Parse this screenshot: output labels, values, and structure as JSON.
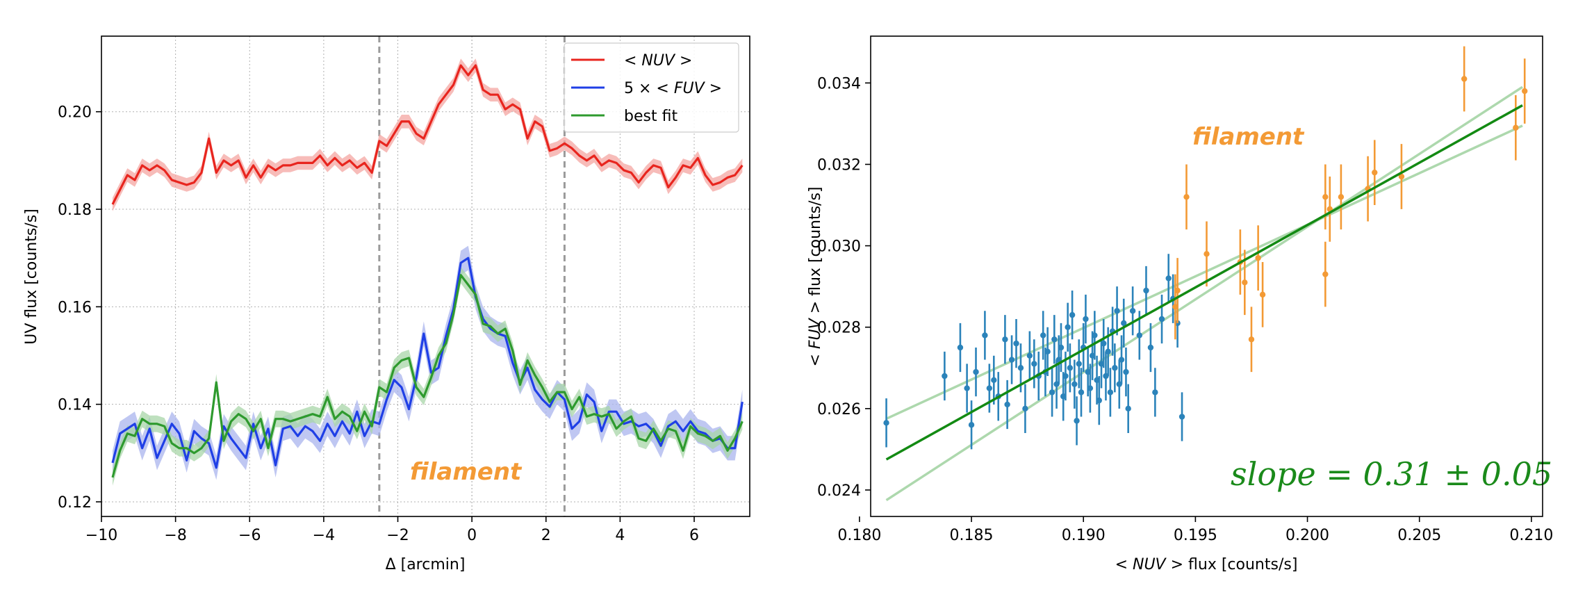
{
  "chart_data": [
    {
      "type": "line",
      "title": "",
      "xlabel": "Δ [arcmin]",
      "ylabel": "UV flux [counts/s]",
      "xlim": [
        -10,
        7.5
      ],
      "ylim": [
        0.117,
        0.2155
      ],
      "xticks": [
        -10,
        -8,
        -6,
        -4,
        -2,
        0,
        2,
        4,
        6
      ],
      "xtick_labels": [
        "−10",
        "−8",
        "−6",
        "−4",
        "−2",
        "0",
        "2",
        "4",
        "6"
      ],
      "yticks": [
        0.12,
        0.14,
        0.16,
        0.18,
        0.2
      ],
      "ytick_labels": [
        "0.12",
        "0.14",
        "0.16",
        "0.18",
        "0.20"
      ],
      "grid": true,
      "vlines": [
        -2.5,
        0,
        2.5
      ],
      "vlines_dashed": [
        -2.5,
        2.5
      ],
      "annotation": "filament",
      "legend_position": "top-right",
      "legend": [
        {
          "pre": "",
          "label": "< NUV >",
          "color": "#e8251e"
        },
        {
          "pre": "5 × ",
          "label": "< FUV >",
          "color": "#1f3fe6"
        },
        {
          "pre": "",
          "label": "best fit",
          "color": "#2e9a2e"
        }
      ],
      "x": [
        -9.7,
        -9.5,
        -9.3,
        -9.1,
        -8.9,
        -8.7,
        -8.5,
        -8.3,
        -8.1,
        -7.9,
        -7.7,
        -7.5,
        -7.3,
        -7.1,
        -6.9,
        -6.7,
        -6.5,
        -6.3,
        -6.1,
        -5.9,
        -5.7,
        -5.5,
        -5.3,
        -5.1,
        -4.9,
        -4.7,
        -4.5,
        -4.3,
        -4.1,
        -3.9,
        -3.7,
        -3.5,
        -3.3,
        -3.1,
        -2.9,
        -2.7,
        -2.5,
        -2.3,
        -2.1,
        -1.9,
        -1.7,
        -1.5,
        -1.3,
        -1.1,
        -0.9,
        -0.7,
        -0.5,
        -0.3,
        -0.1,
        0.1,
        0.3,
        0.5,
        0.7,
        0.9,
        1.1,
        1.3,
        1.5,
        1.7,
        1.9,
        2.1,
        2.3,
        2.5,
        2.7,
        2.9,
        3.1,
        3.3,
        3.5,
        3.7,
        3.9,
        4.1,
        4.3,
        4.5,
        4.7,
        4.9,
        5.1,
        5.3,
        5.5,
        5.7,
        5.9,
        6.1,
        6.3,
        6.5,
        6.7,
        6.9,
        7.1,
        7.3
      ],
      "series": [
        {
          "name": "< NUV >",
          "color": "#e8251e",
          "band_color": "#f4a5a2",
          "err": 0.0014,
          "values": [
            0.181,
            0.184,
            0.187,
            0.186,
            0.189,
            0.188,
            0.189,
            0.188,
            0.186,
            0.1855,
            0.185,
            0.1855,
            0.1875,
            0.1945,
            0.1875,
            0.19,
            0.189,
            0.19,
            0.1865,
            0.189,
            0.1865,
            0.189,
            0.188,
            0.189,
            0.189,
            0.1895,
            0.1895,
            0.1895,
            0.191,
            0.189,
            0.1905,
            0.189,
            0.19,
            0.1885,
            0.1895,
            0.1875,
            0.194,
            0.193,
            0.1955,
            0.198,
            0.198,
            0.1955,
            0.1945,
            0.198,
            0.2015,
            0.2035,
            0.2055,
            0.2095,
            0.2075,
            0.2095,
            0.2045,
            0.2035,
            0.2035,
            0.2005,
            0.2015,
            0.2005,
            0.1945,
            0.198,
            0.197,
            0.192,
            0.1925,
            0.1935,
            0.1925,
            0.191,
            0.19,
            0.191,
            0.189,
            0.19,
            0.1895,
            0.188,
            0.1875,
            0.1855,
            0.1875,
            0.189,
            0.1885,
            0.1845,
            0.1865,
            0.189,
            0.1885,
            0.1905,
            0.187,
            0.185,
            0.1855,
            0.1865,
            0.187,
            0.189
          ]
        },
        {
          "name": "5 × < FUV >",
          "color": "#1f3fe6",
          "band_color": "#a9b4ee",
          "err": 0.0025,
          "values": [
            0.128,
            0.134,
            0.135,
            0.136,
            0.131,
            0.135,
            0.129,
            0.1325,
            0.136,
            0.134,
            0.1285,
            0.1345,
            0.133,
            0.132,
            0.127,
            0.1355,
            0.133,
            0.131,
            0.129,
            0.136,
            0.131,
            0.135,
            0.1275,
            0.135,
            0.1355,
            0.1335,
            0.1355,
            0.1345,
            0.1325,
            0.136,
            0.1335,
            0.1365,
            0.134,
            0.1385,
            0.1335,
            0.1365,
            0.136,
            0.141,
            0.145,
            0.1435,
            0.139,
            0.1455,
            0.1545,
            0.1465,
            0.1475,
            0.154,
            0.1595,
            0.169,
            0.17,
            0.162,
            0.1575,
            0.1555,
            0.1545,
            0.154,
            0.1485,
            0.1445,
            0.1475,
            0.143,
            0.141,
            0.1395,
            0.1425,
            0.141,
            0.135,
            0.1365,
            0.142,
            0.1405,
            0.1345,
            0.1385,
            0.1385,
            0.136,
            0.1365,
            0.1355,
            0.136,
            0.1345,
            0.1315,
            0.1355,
            0.1365,
            0.1345,
            0.1365,
            0.1345,
            0.134,
            0.1325,
            0.133,
            0.131,
            0.131,
            0.1405
          ]
        },
        {
          "name": "best fit",
          "color": "#2e9a2e",
          "band_color": "#a8d6a8",
          "err": 0.0017,
          "values": [
            0.125,
            0.1305,
            0.134,
            0.1335,
            0.137,
            0.136,
            0.136,
            0.1355,
            0.132,
            0.131,
            0.131,
            0.13,
            0.131,
            0.133,
            0.1445,
            0.1325,
            0.1365,
            0.138,
            0.137,
            0.1345,
            0.137,
            0.131,
            0.137,
            0.137,
            0.1365,
            0.137,
            0.1375,
            0.138,
            0.1375,
            0.1415,
            0.137,
            0.1385,
            0.1375,
            0.1345,
            0.1385,
            0.1355,
            0.1435,
            0.1425,
            0.1475,
            0.149,
            0.1495,
            0.1435,
            0.1415,
            0.1455,
            0.15,
            0.1525,
            0.1585,
            0.1665,
            0.1645,
            0.1625,
            0.1565,
            0.156,
            0.1545,
            0.1555,
            0.151,
            0.144,
            0.149,
            0.146,
            0.1435,
            0.1405,
            0.1425,
            0.1425,
            0.139,
            0.1415,
            0.1375,
            0.138,
            0.1375,
            0.138,
            0.135,
            0.1365,
            0.1375,
            0.133,
            0.1325,
            0.135,
            0.1325,
            0.135,
            0.1345,
            0.1305,
            0.1355,
            0.134,
            0.1335,
            0.1325,
            0.1335,
            0.1305,
            0.133,
            0.1365
          ]
        }
      ]
    },
    {
      "type": "scatter",
      "title": "",
      "xlabel_math": "< NUV >",
      "xlabel": " flux  [counts/s]",
      "ylabel_math": "< FUV >",
      "ylabel": " flux  [counts/s]",
      "xlim": [
        0.1805,
        0.2105
      ],
      "ylim": [
        0.02335,
        0.03515
      ],
      "xticks": [
        0.18,
        0.185,
        0.19,
        0.195,
        0.2,
        0.205,
        0.21
      ],
      "xtick_labels": [
        "0.180",
        "0.185",
        "0.190",
        "0.195",
        "0.200",
        "0.205",
        "0.210"
      ],
      "yticks": [
        0.024,
        0.026,
        0.028,
        0.03,
        0.032,
        0.034
      ],
      "ytick_labels": [
        "0.024",
        "0.026",
        "0.028",
        "0.030",
        "0.032",
        "0.034"
      ],
      "grid": false,
      "annotation": "filament",
      "slope_text": "slope = 0.31 ± 0.05",
      "fit": {
        "x": [
          0.1812,
          0.2096
        ],
        "y": [
          0.02475,
          0.03345
        ],
        "color": "#138a13"
      },
      "fit_bounds": [
        {
          "x": [
            0.1812,
            0.2096
          ],
          "y": [
            0.02575,
            0.03295
          ]
        },
        {
          "x": [
            0.1812,
            0.2096
          ],
          "y": [
            0.02375,
            0.0339
          ]
        }
      ],
      "series": [
        {
          "name": "outside",
          "color": "#2b83ba",
          "yerr": 0.0006,
          "points": [
            [
              0.1812,
              0.02565
            ],
            [
              0.1838,
              0.0268
            ],
            [
              0.1845,
              0.0275
            ],
            [
              0.1848,
              0.0265
            ],
            [
              0.185,
              0.0256
            ],
            [
              0.1852,
              0.0269
            ],
            [
              0.1856,
              0.0278
            ],
            [
              0.1858,
              0.0265
            ],
            [
              0.186,
              0.0267
            ],
            [
              0.1862,
              0.0263
            ],
            [
              0.1865,
              0.0277
            ],
            [
              0.1866,
              0.0261
            ],
            [
              0.1868,
              0.0272
            ],
            [
              0.187,
              0.0276
            ],
            [
              0.1872,
              0.027
            ],
            [
              0.1874,
              0.026
            ],
            [
              0.1876,
              0.0273
            ],
            [
              0.1878,
              0.0271
            ],
            [
              0.188,
              0.0268
            ],
            [
              0.1882,
              0.0278
            ],
            [
              0.1883,
              0.0269
            ],
            [
              0.1884,
              0.0274
            ],
            [
              0.1886,
              0.0264
            ],
            [
              0.1887,
              0.0277
            ],
            [
              0.1888,
              0.0266
            ],
            [
              0.1889,
              0.0272
            ],
            [
              0.189,
              0.0275
            ],
            [
              0.1891,
              0.0263
            ],
            [
              0.1892,
              0.0268
            ],
            [
              0.1893,
              0.028
            ],
            [
              0.1894,
              0.027
            ],
            [
              0.1895,
              0.0283
            ],
            [
              0.1896,
              0.0266
            ],
            [
              0.1897,
              0.0257
            ],
            [
              0.1898,
              0.0271
            ],
            [
              0.1899,
              0.0264
            ],
            [
              0.19,
              0.0275
            ],
            [
              0.1901,
              0.0282
            ],
            [
              0.1902,
              0.0269
            ],
            [
              0.1903,
              0.0265
            ],
            [
              0.1904,
              0.0273
            ],
            [
              0.1905,
              0.0278
            ],
            [
              0.1906,
              0.0267
            ],
            [
              0.1907,
              0.0262
            ],
            [
              0.1908,
              0.0271
            ],
            [
              0.1909,
              0.0276
            ],
            [
              0.191,
              0.0268
            ],
            [
              0.1911,
              0.0274
            ],
            [
              0.1912,
              0.0264
            ],
            [
              0.1913,
              0.0279
            ],
            [
              0.1914,
              0.027
            ],
            [
              0.1915,
              0.0284
            ],
            [
              0.1916,
              0.0266
            ],
            [
              0.1917,
              0.0272
            ],
            [
              0.1918,
              0.0281
            ],
            [
              0.1919,
              0.0269
            ],
            [
              0.192,
              0.026
            ],
            [
              0.1922,
              0.0284
            ],
            [
              0.1925,
              0.0278
            ],
            [
              0.1928,
              0.0289
            ],
            [
              0.193,
              0.0275
            ],
            [
              0.1932,
              0.0264
            ],
            [
              0.1935,
              0.0282
            ],
            [
              0.1938,
              0.0292
            ],
            [
              0.194,
              0.0287
            ],
            [
              0.1942,
              0.0281
            ],
            [
              0.1944,
              0.0258
            ]
          ]
        },
        {
          "name": "filament",
          "color": "#f39a35",
          "yerr": 0.0008,
          "points": [
            [
              0.1941,
              0.0285
            ],
            [
              0.1942,
              0.0289
            ],
            [
              0.1946,
              0.0312
            ],
            [
              0.1955,
              0.0298
            ],
            [
              0.197,
              0.0296
            ],
            [
              0.1972,
              0.0291
            ],
            [
              0.1975,
              0.0277
            ],
            [
              0.1978,
              0.0297
            ],
            [
              0.198,
              0.0288
            ],
            [
              0.2008,
              0.0293
            ],
            [
              0.2008,
              0.0312
            ],
            [
              0.201,
              0.0309
            ],
            [
              0.2015,
              0.0312
            ],
            [
              0.2027,
              0.0314
            ],
            [
              0.203,
              0.0318
            ],
            [
              0.2042,
              0.0317
            ],
            [
              0.207,
              0.0341
            ],
            [
              0.2093,
              0.0329
            ],
            [
              0.2097,
              0.0338
            ]
          ]
        }
      ]
    }
  ]
}
